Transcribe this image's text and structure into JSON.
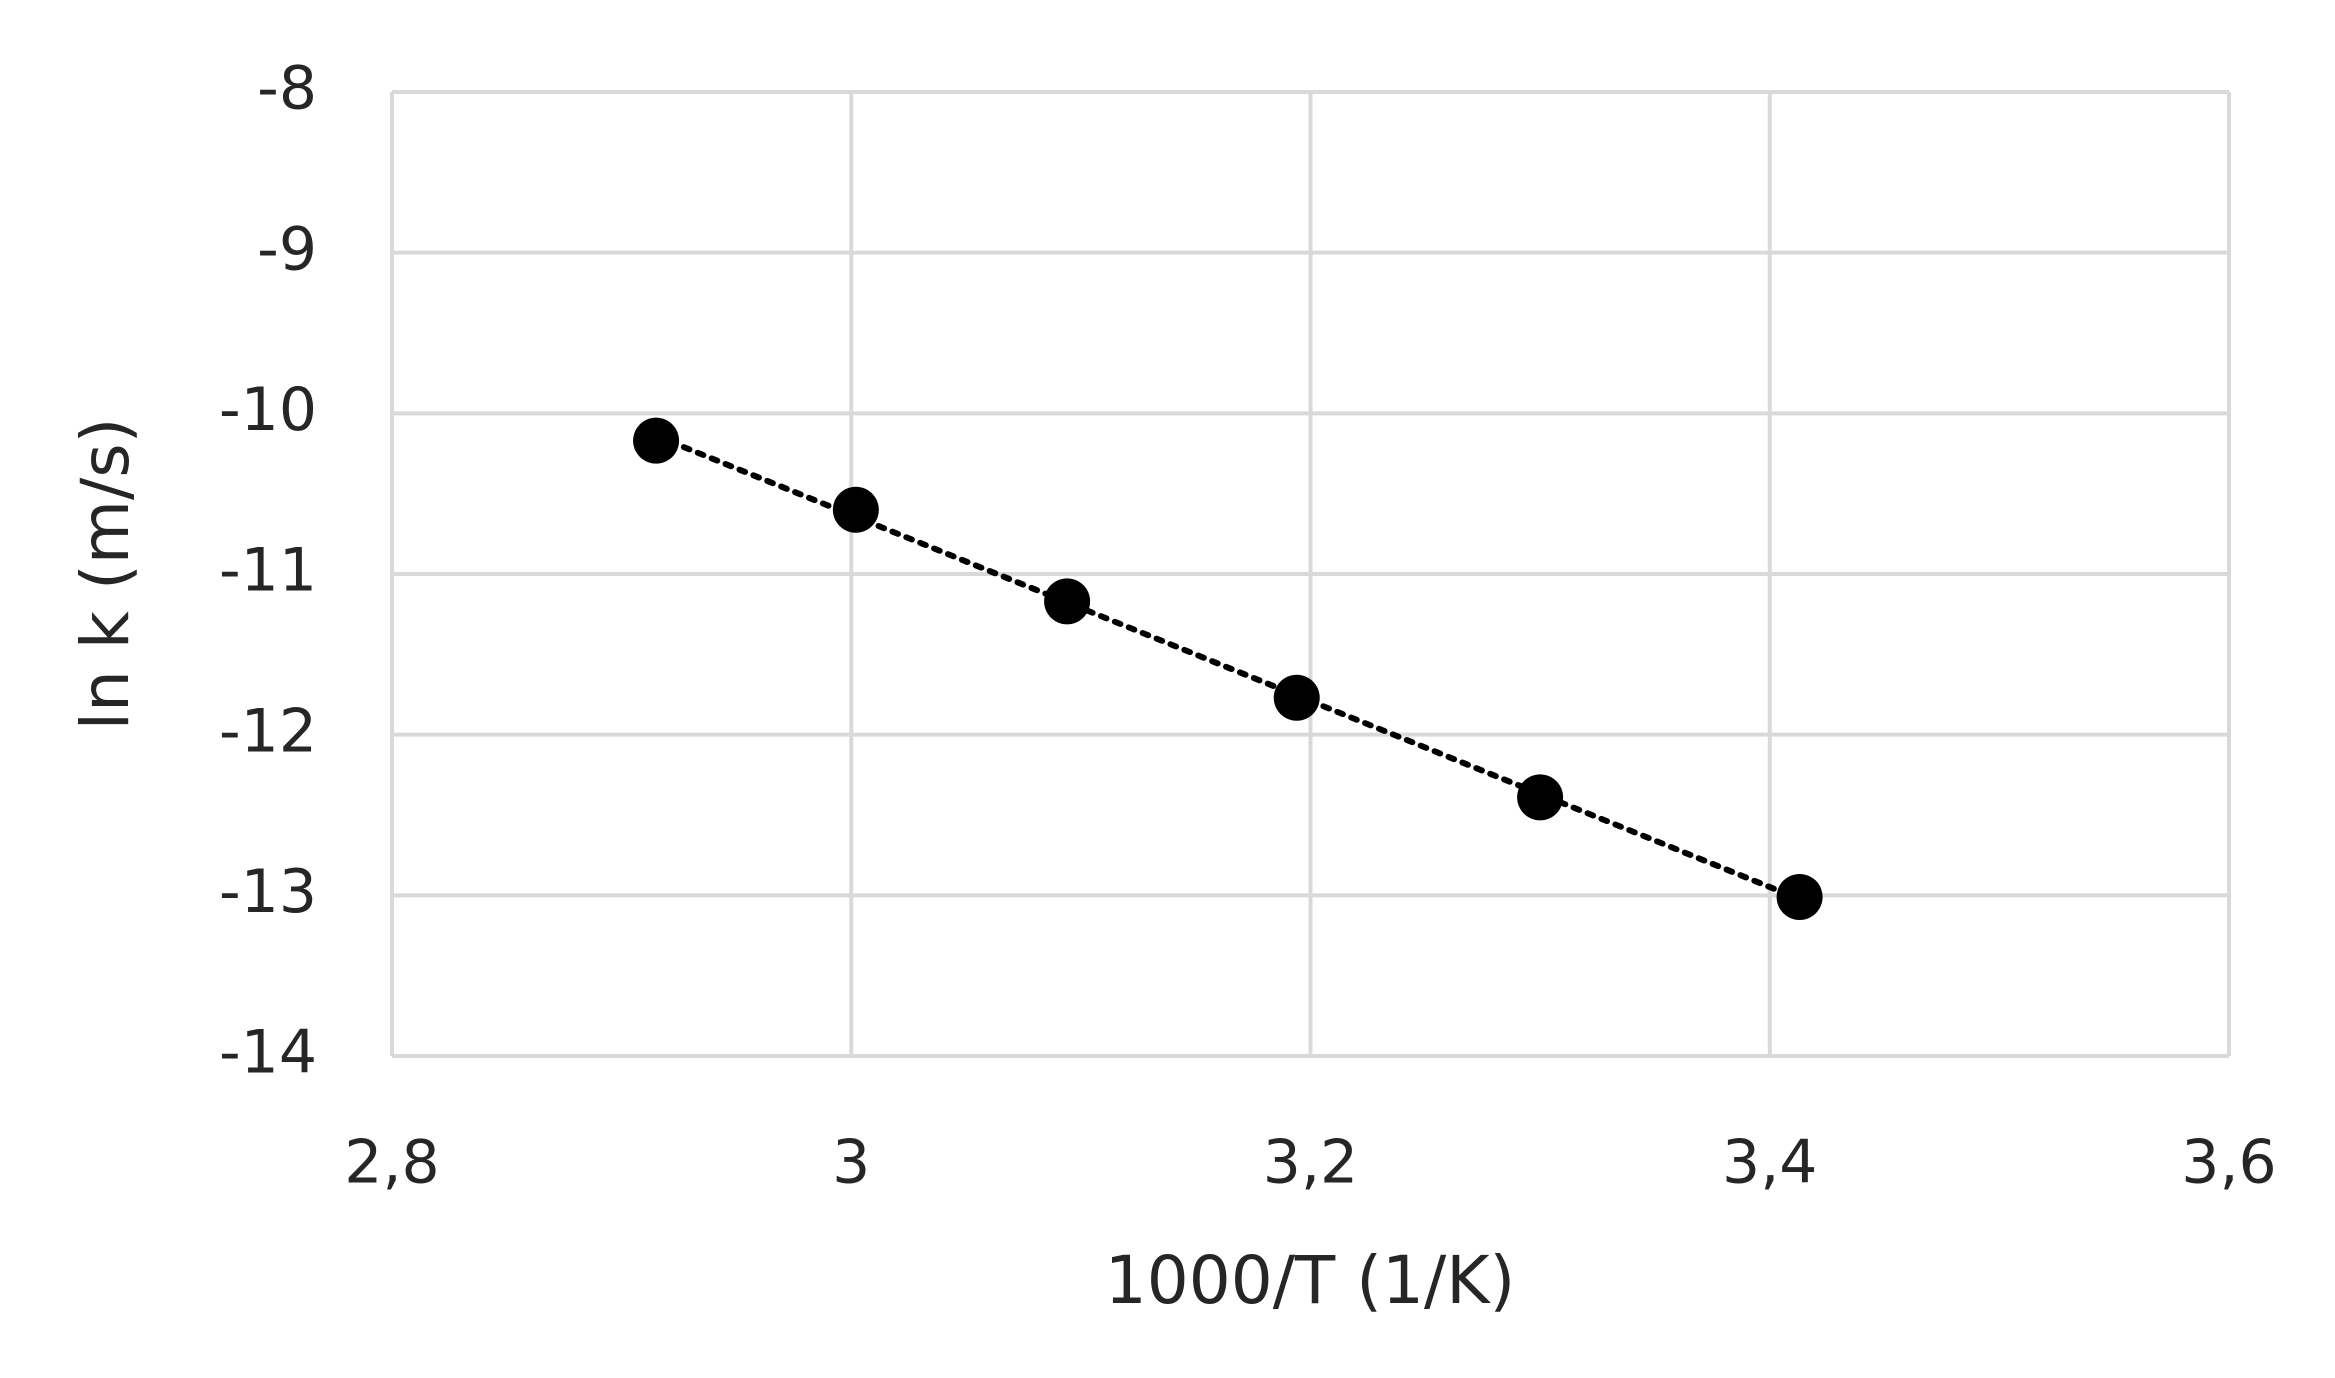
{
  "chart_data": {
    "type": "scatter",
    "xlabel": "1000/T (1/K)",
    "ylabel": "ln k (m/s)",
    "series": [
      {
        "color": "#000000",
        "x": [
          2.915,
          3.002,
          3.094,
          3.194,
          3.3,
          3.413
        ],
        "values": [
          -10.17,
          -10.6,
          -11.17,
          -11.77,
          -12.39,
          -13.01
        ]
      }
    ],
    "trendline": true,
    "xlim": [
      2.8,
      3.6
    ],
    "xticks": [
      {
        "value": 2.8,
        "label": "2,8"
      },
      3,
      {
        "value": 3.2,
        "label": "3,2"
      },
      {
        "value": 3.4,
        "label": "3,4"
      },
      {
        "value": 3.6,
        "label": "3,6"
      }
    ],
    "ylim": [
      -14,
      -8
    ],
    "yticks": [
      -14,
      -13,
      -12,
      -11,
      -10,
      -9,
      -8
    ],
    "grid": true
  }
}
